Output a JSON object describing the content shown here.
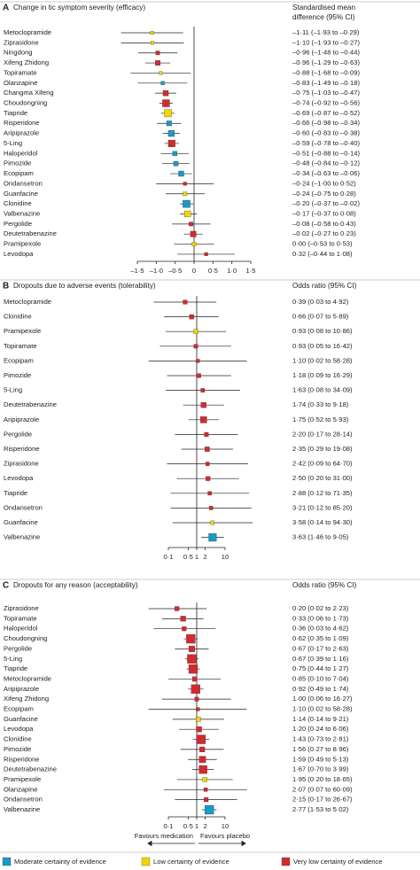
{
  "chart_data": [
    {
      "type": "forest",
      "panel": "A",
      "title": "Change in tic symptom severity (efficacy)",
      "header": [
        "Standardised mean",
        "difference (95% CI)"
      ],
      "categories": [
        "Metoclopramide",
        "Ziprasidone",
        "Ningdong",
        "Xifeng Zhidong",
        "Topiramate",
        "Olanzapine",
        "Changma Xifeng",
        "Choudongning",
        "Tiapride",
        "Risperidone",
        "Aripiprazole",
        "5-Ling",
        "Haloperidol",
        "Pimozide",
        "Ecopipam",
        "Ondansetron",
        "Guanfacine",
        "Clonidine",
        "Valbenazine",
        "Pergolide",
        "Deutetrabenazine",
        "Pramipexole",
        "Levodopa"
      ],
      "values": [
        -1.11,
        -1.1,
        -0.96,
        -0.96,
        -0.88,
        -0.83,
        -0.75,
        -0.74,
        -0.69,
        -0.66,
        -0.6,
        -0.59,
        -0.51,
        -0.48,
        -0.34,
        -0.24,
        -0.24,
        -0.2,
        -0.17,
        -0.08,
        -0.02,
        0.0,
        0.32
      ],
      "lower": [
        -1.93,
        -1.93,
        -1.48,
        -1.29,
        -1.68,
        -1.49,
        -1.03,
        -0.92,
        -0.87,
        -0.98,
        -0.83,
        -0.78,
        -0.88,
        -0.84,
        -0.63,
        -1.0,
        -0.75,
        -0.37,
        -0.37,
        -0.58,
        -0.27,
        -0.53,
        -0.44
      ],
      "upper": [
        -0.29,
        -0.27,
        -0.44,
        -0.63,
        -0.09,
        -0.18,
        -0.47,
        -0.56,
        -0.52,
        -0.34,
        -0.38,
        -0.4,
        -0.14,
        -0.12,
        -0.06,
        0.52,
        0.28,
        -0.02,
        0.08,
        0.43,
        0.23,
        0.53,
        1.08
      ],
      "value_labels": [
        "–1·11 (–1·93 to –0·29)",
        "–1·10 (–1·93 to –0·27)",
        "–0·96 (–1·48 to –0·44)",
        "–0·96 (–1·29 to –0·63)",
        "–0·88 (–1·68 to –0·09)",
        "–0·83 (–1·49 to –0·18)",
        "–0·75 (–1·03 to –0·47)",
        "–0·74 (–0·92 to –0·56)",
        "–0·69 (–0·87 to –0·52)",
        "–0·66 (–0·98 to –0·34)",
        "–0·60 (–0·83 to –0·38)",
        "–0·59 (–0·78 to –0·40)",
        "–0·51 (–0·88 to –0·14)",
        "–0·48 (–0·84 to –0·12)",
        "–0·34 (–0·63 to –0·06)",
        "–0·24 (–1·00 to 0·52)",
        "–0·24 (–0·75 to 0·28)",
        "–0·20 (–0·37 to –0·02)",
        "–0·17 (–0·37 to 0·08)",
        "–0·08 (–0·58 to 0·43)",
        "–0·02 (–0·27 to 0·23)",
        "0·00 (–0·53 to 0·53)",
        "0·32 (–0·44 to 1·08)"
      ],
      "colors": [
        "#f2d600",
        "#f2d600",
        "#d42a2f",
        "#d42a2f",
        "#f2d600",
        "#1a9ac4",
        "#d42a2f",
        "#d42a2f",
        "#f2d600",
        "#1a9ac4",
        "#1a9ac4",
        "#d42a2f",
        "#1a9ac4",
        "#1a9ac4",
        "#1a9ac4",
        "#d42a2f",
        "#f2d600",
        "#1a9ac4",
        "#f2d600",
        "#d42a2f",
        "#d42a2f",
        "#f2d600",
        "#d42a2f"
      ],
      "xlim": [
        -1.5,
        1.5
      ],
      "xticks": [
        {
          "value": -1.5,
          "label": "–1·5"
        },
        {
          "value": -1.0,
          "label": "–1·0"
        },
        {
          "value": -0.5,
          "label": "–0·5"
        },
        0,
        {
          "value": 0.5,
          "label": "0·5"
        },
        {
          "value": 1.0,
          "label": "1·0"
        },
        {
          "value": 1.5,
          "label": "1·5"
        }
      ],
      "reference_line": 0
    },
    {
      "type": "forest",
      "panel": "B",
      "title": "Dropouts due to adverse events (tolerability)",
      "header": [
        "Odds ratio (95% CI)"
      ],
      "xscale": "log",
      "categories": [
        "Metoclopramide",
        "Clonidine",
        "Pramipexole",
        "Topiramate",
        "Ecopipam",
        "Pimozide",
        "5-Ling",
        "Deutetrabenazine",
        "Aripiprazole",
        "Pergolide",
        "Risperidone",
        "Ziprasidone",
        "Levodopa",
        "Tiapride",
        "Ondansetron",
        "Guanfacine",
        "Valbenazine"
      ],
      "values": [
        0.39,
        0.66,
        0.93,
        0.93,
        1.1,
        1.18,
        1.63,
        1.74,
        1.75,
        2.2,
        2.35,
        2.42,
        2.5,
        2.88,
        3.21,
        3.58,
        3.63
      ],
      "lower": [
        0.03,
        0.07,
        0.08,
        0.05,
        0.02,
        0.09,
        0.08,
        0.33,
        0.52,
        0.17,
        0.29,
        0.09,
        0.2,
        0.12,
        0.12,
        0.14,
        1.46
      ],
      "upper": [
        4.92,
        5.89,
        10.86,
        16.42,
        58.28,
        16.29,
        34.09,
        9.18,
        5.93,
        28.14,
        19.08,
        64.7,
        31.0,
        71.35,
        85.2,
        94.3,
        9.05
      ],
      "value_labels": [
        "0·39 (0·03 to 4·92)",
        "0·66 (0·07 to 5·89)",
        "0·93 (0·08 to 10·86)",
        "0·93 (0·05 to 16·42)",
        "1·10 (0·02 to 58·28)",
        "1·18 (0·09 to 16·29)",
        "1·63 (0·08 to 34·09)",
        "1·74 (0·33 to 9·18)",
        "1·75 (0·52 to 5·93)",
        "2·20 (0·17 to 28·14)",
        "2·35 (0·29 to 19·08)",
        "2·42 (0·09 to 64·70)",
        "2·50 (0·20 to 31·00)",
        "2·88 (0·12 to 71·35)",
        "3·21 (0·12 to 85·20)",
        "3·58 (0·14 to 94·30)",
        "3·63 (1·46 to 9·05)"
      ],
      "colors": [
        "#d42a2f",
        "#d42a2f",
        "#f2d600",
        "#d42a2f",
        "#d42a2f",
        "#d42a2f",
        "#d42a2f",
        "#d42a2f",
        "#d42a2f",
        "#d42a2f",
        "#d42a2f",
        "#d42a2f",
        "#d42a2f",
        "#d42a2f",
        "#d42a2f",
        "#f2d600",
        "#1a9ac4"
      ],
      "xlim": [
        0.1,
        10
      ],
      "xticks": [
        {
          "value": 0.1,
          "label": "0·1"
        },
        {
          "value": 0.5,
          "label": "0·5"
        },
        1,
        2,
        10
      ],
      "reference_line": 1
    },
    {
      "type": "forest",
      "panel": "C",
      "title": "Dropouts for any reason (acceptability)",
      "header": [
        "Odds ratio (95% CI)"
      ],
      "xscale": "log",
      "categories": [
        "Ziprasidone",
        "Topiramate",
        "Haloperidol",
        "Choudongning",
        "Pergolide",
        "5-Ling",
        "Tiapride",
        "Metoclopramide",
        "Aripiprazole",
        "Xifeng Zhidong",
        "Ecopipam",
        "Guanfacine",
        "Levodopa",
        "Clonidine",
        "Pimozide",
        "Risperidone",
        "Deutetrabenazine",
        "Pramipexole",
        "Olanzapine",
        "Ondansetron",
        "Valbenazine"
      ],
      "values": [
        0.2,
        0.33,
        0.36,
        0.62,
        0.67,
        0.67,
        0.75,
        0.85,
        0.92,
        1.0,
        1.1,
        1.14,
        1.2,
        1.43,
        1.56,
        1.59,
        1.67,
        1.95,
        2.07,
        2.15,
        2.77
      ],
      "lower": [
        0.02,
        0.06,
        0.03,
        0.35,
        0.17,
        0.39,
        0.44,
        0.1,
        0.49,
        0.06,
        0.02,
        0.14,
        0.24,
        0.73,
        0.27,
        0.49,
        0.7,
        0.2,
        0.07,
        0.17,
        1.53
      ],
      "upper": [
        2.23,
        1.73,
        4.62,
        1.09,
        2.63,
        1.16,
        1.27,
        7.04,
        1.74,
        16.27,
        58.28,
        9.21,
        6.06,
        2.81,
        8.96,
        5.13,
        3.99,
        18.65,
        60.09,
        26.67,
        5.02
      ],
      "value_labels": [
        "0·20 (0·02 to 2·23)",
        "0·33 (0·06 to 1·73)",
        "0·36 (0·03 to 4·62)",
        "0·62 (0·35 to 1·09)",
        "0·67 (0·17 to 2·63)",
        "0·67 (0·39 to 1·16)",
        "0·75 (0·44 to 1·27)",
        "0·85 (0·10 to 7·04)",
        "0·92 (0·49 to 1·74)",
        "1·00 (0·06 to 16·27)",
        "1·10 (0·02 to 58·28)",
        "1·14 (0·14 to 9·21)",
        "1·20 (0·24 to 6·06)",
        "1·43 (0·73 to 2·81)",
        "1·56 (0·27 to 8·96)",
        "1·59 (0·49 to 5·13)",
        "1·67 (0·70 to 3·99)",
        "1·95 (0·20 to 18·65)",
        "2·07 (0·07 to 60·09)",
        "2·15 (0·17 to 26·67)",
        "2·77 (1·53 to 5·02)"
      ],
      "colors": [
        "#d42a2f",
        "#d42a2f",
        "#d42a2f",
        "#d42a2f",
        "#d42a2f",
        "#d42a2f",
        "#d42a2f",
        "#d42a2f",
        "#d42a2f",
        "#d42a2f",
        "#d42a2f",
        "#f2d600",
        "#d42a2f",
        "#d42a2f",
        "#d42a2f",
        "#d42a2f",
        "#d42a2f",
        "#f2d600",
        "#d42a2f",
        "#d42a2f",
        "#1a9ac4"
      ],
      "xlim": [
        0.1,
        10
      ],
      "xticks": [
        {
          "value": 0.1,
          "label": "0·1"
        },
        {
          "value": 0.5,
          "label": "0·5"
        },
        1,
        2,
        10
      ],
      "reference_line": 1,
      "annotations": [
        "Favours medication",
        "Favours placebo"
      ],
      "legend": [
        {
          "label": "Moderate certainty of evidence",
          "color": "#1a9ac4"
        },
        {
          "label": "Low certainty of evidence",
          "color": "#f2d600"
        },
        {
          "label": "Very low certainty of evidence",
          "color": "#d42a2f"
        }
      ]
    }
  ]
}
